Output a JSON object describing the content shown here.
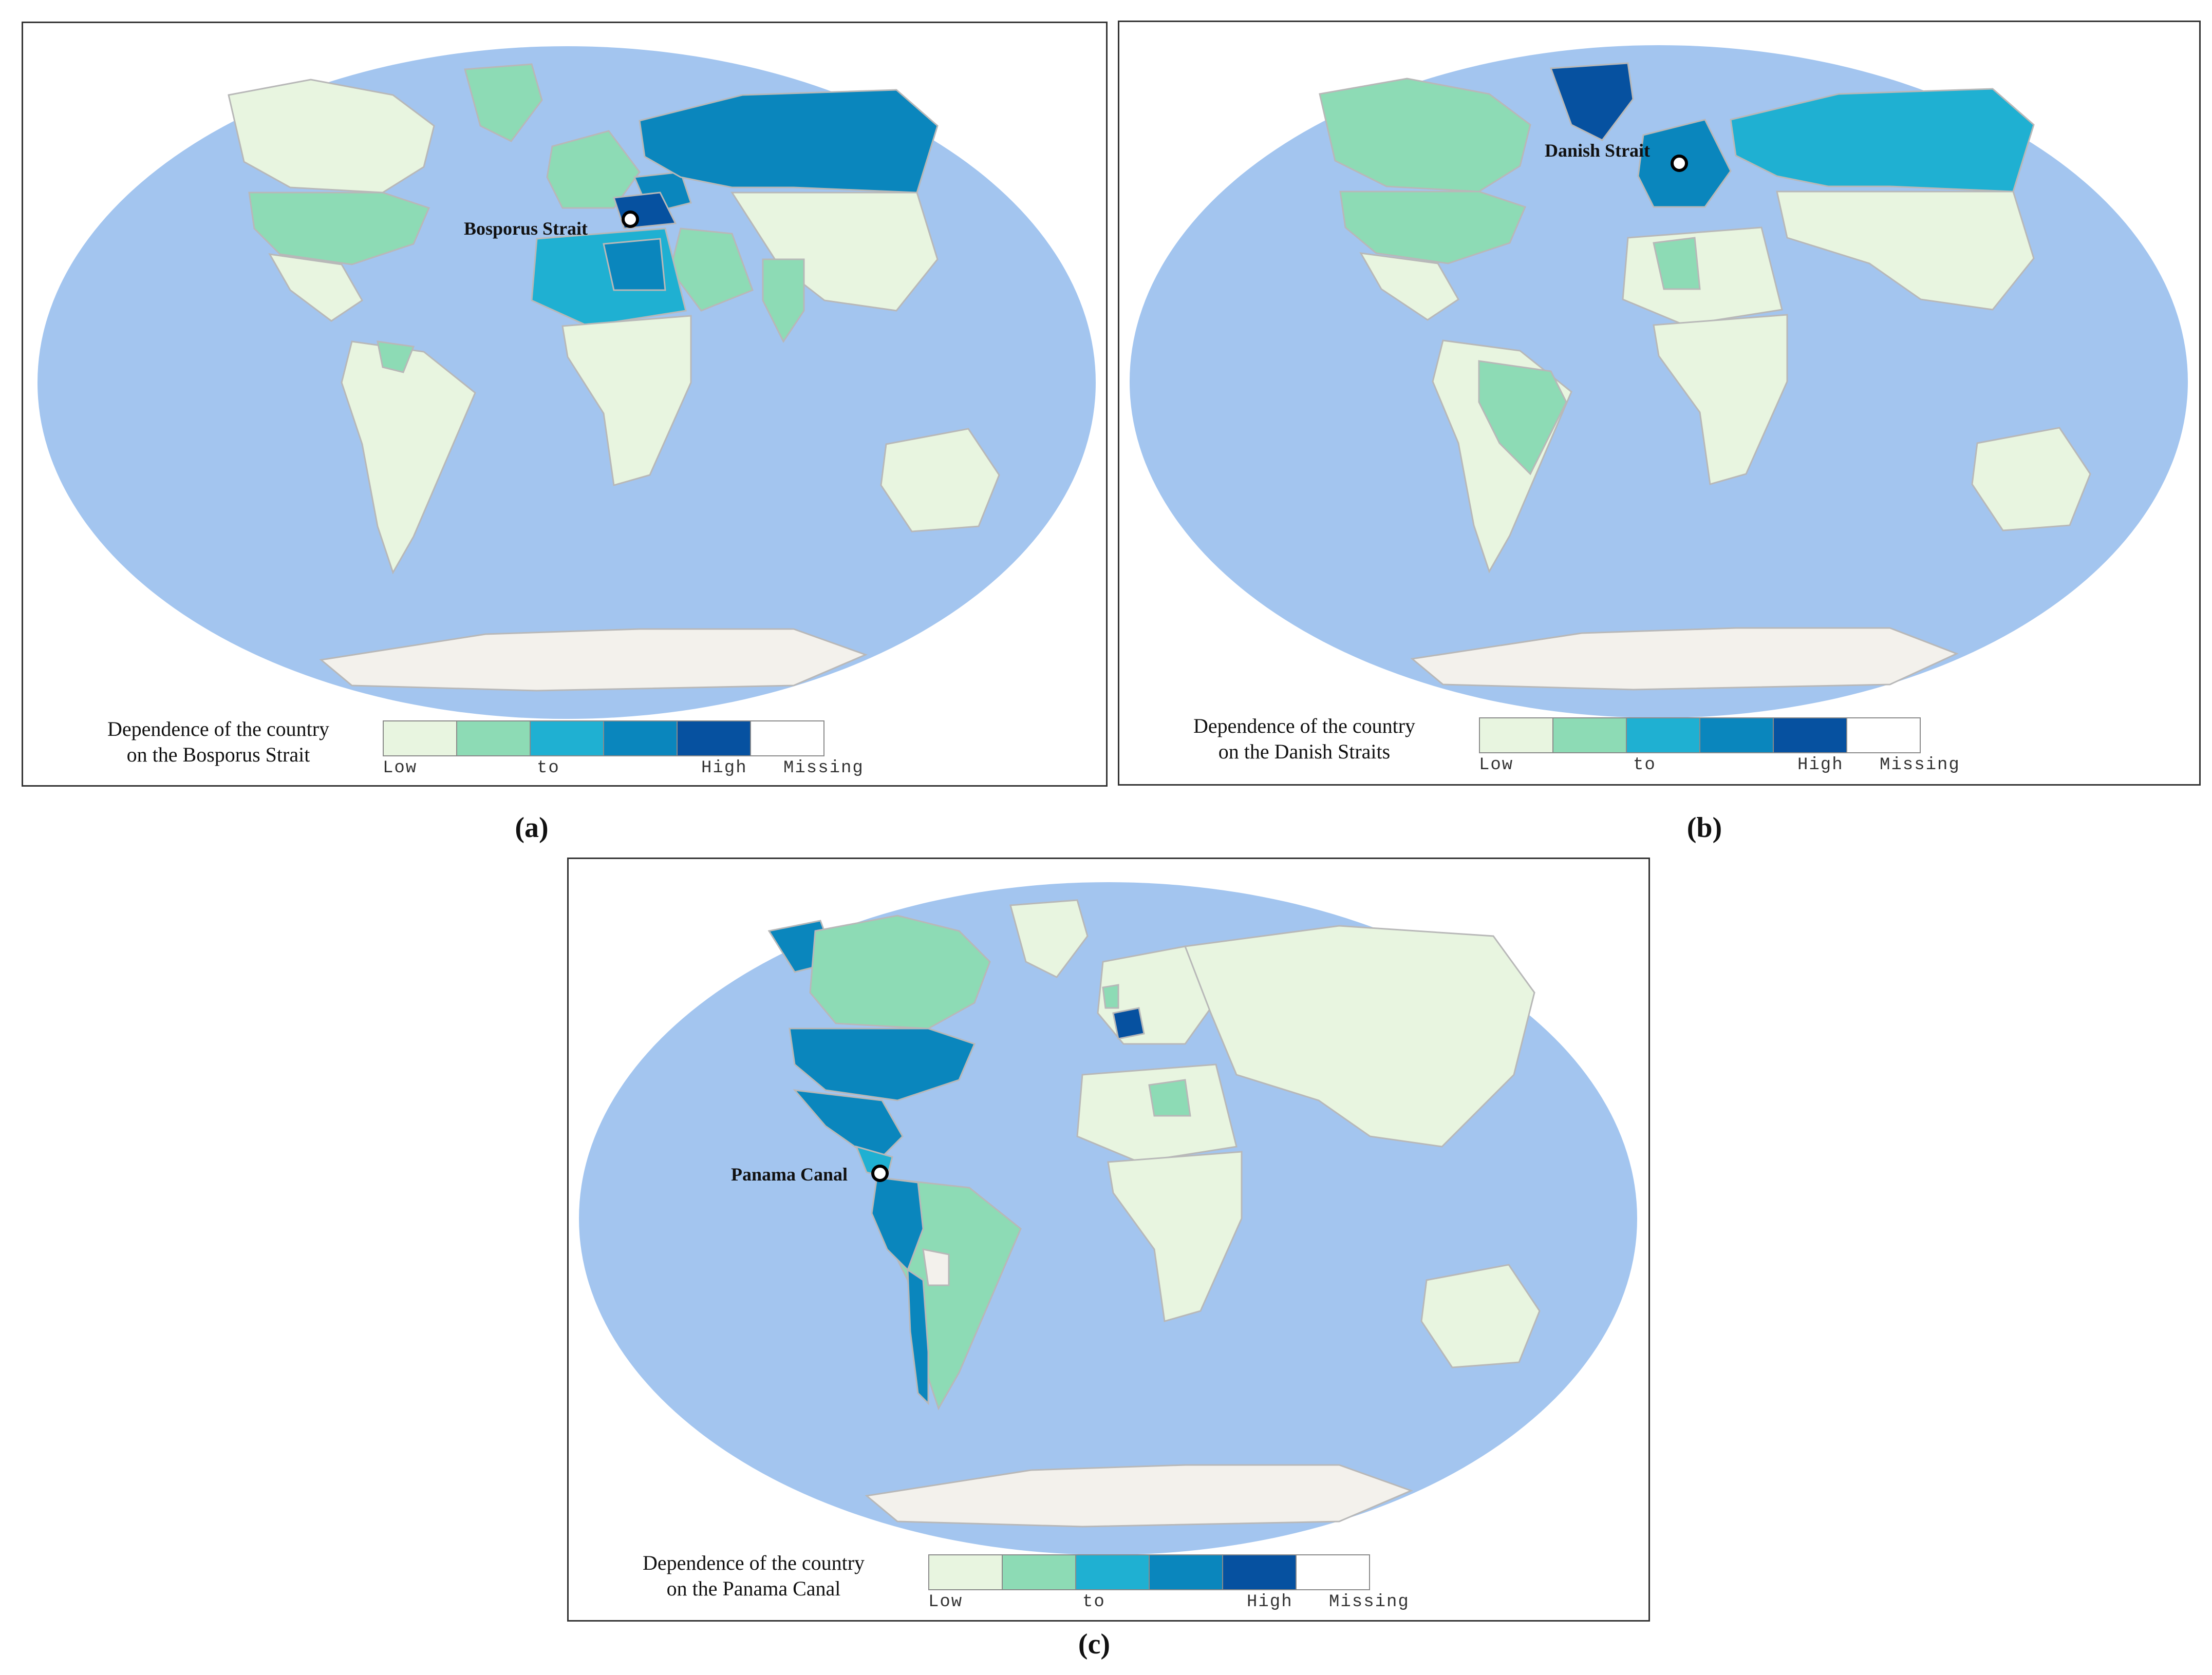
{
  "panels": [
    {
      "id": "a",
      "caption": "(a)",
      "location_label": "Bosporus Strait",
      "legend_title_line1": "Dependence of the country",
      "legend_title_line2": "on the Bosporus Strait",
      "legend_labels": {
        "low": "Low",
        "mid": "to",
        "high": "High",
        "missing": "Missing"
      }
    },
    {
      "id": "b",
      "caption": "(b)",
      "location_label": "Danish Strait",
      "legend_title_line1": "Dependence of the country",
      "legend_title_line2": "on the Danish Straits",
      "legend_labels": {
        "low": "Low",
        "mid": "to",
        "high": "High",
        "missing": "Missing"
      }
    },
    {
      "id": "c",
      "caption": "(c)",
      "location_label": "Panama Canal",
      "legend_title_line1": "Dependence of the country",
      "legend_title_line2": "on the Panama Canal",
      "legend_labels": {
        "low": "Low",
        "mid": "to",
        "high": "High",
        "missing": "Missing"
      }
    }
  ],
  "legend_colors": [
    "#e8f5e0",
    "#8ddbb5",
    "#1fb0d2",
    "#0a86bd",
    "#0651a0",
    "#ffffff"
  ],
  "map_colors": {
    "ocean": "#a3c5ef",
    "antarctica": "#f3f1ec",
    "land_low": "#e8f5e0",
    "border": "#b8b8b8",
    "marker_fill": "#ffffff",
    "marker_stroke": "#000000"
  }
}
